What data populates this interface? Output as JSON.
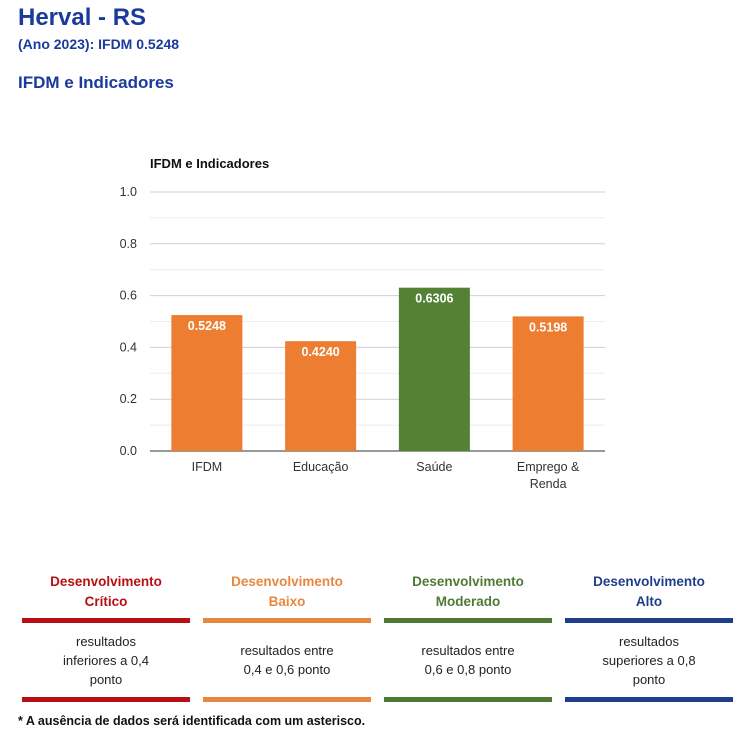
{
  "header": {
    "title": "Herval - RS",
    "subtitle": "(Ano 2023): IFDM 0.5248",
    "section": "IFDM e Indicadores"
  },
  "chart_data": {
    "type": "bar",
    "title": "IFDM e Indicadores",
    "categories": [
      "IFDM",
      "Educação",
      "Saúde",
      "Emprego & Renda"
    ],
    "values": [
      0.5248,
      0.424,
      0.6306,
      0.5198
    ],
    "data_labels": [
      "0.5248",
      "0.4240",
      "0.6306",
      "0.5198"
    ],
    "bar_colors": [
      "#ed7d31",
      "#ed7d31",
      "#548235",
      "#ed7d31"
    ],
    "ylim": [
      0,
      1.0
    ],
    "yticks": [
      "0.0",
      "0.2",
      "0.4",
      "0.6",
      "0.8",
      "1.0"
    ],
    "grid": true
  },
  "legend": [
    {
      "title_line1": "Desenvolvimento",
      "title_line2": "Crítico",
      "desc": "resultados inferiores a 0,4 ponto",
      "color": "#b80f14"
    },
    {
      "title_line1": "Desenvolvimento",
      "title_line2": "Baixo",
      "desc": "resultados entre 0,4 e 0,6 ponto",
      "color": "#e8873f"
    },
    {
      "title_line1": "Desenvolvimento",
      "title_line2": "Moderado",
      "desc": "resultados entre 0,6 e 0,8 ponto",
      "color": "#4f7a35"
    },
    {
      "title_line1": "Desenvolvimento",
      "title_line2": "Alto",
      "desc": "resultados superiores a 0,8 ponto",
      "color": "#1f3f8c"
    }
  ],
  "footnote": "* A ausência de dados será identificada com um asterisco."
}
